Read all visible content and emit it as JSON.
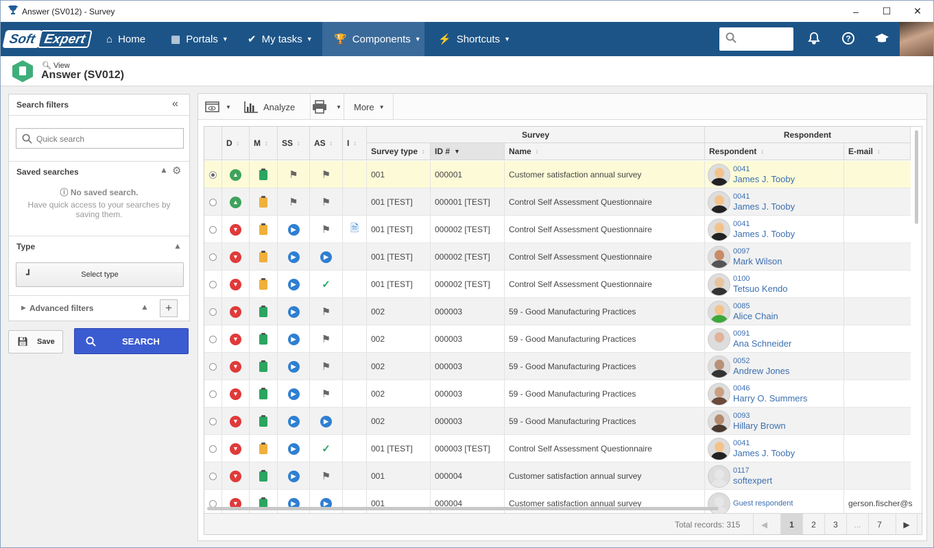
{
  "window": {
    "title": "Answer (SV012) - Survey"
  },
  "logo": {
    "part1": "Soft",
    "part2": "Expert"
  },
  "nav": [
    {
      "label": "Home",
      "icon": "home-icon"
    },
    {
      "label": "Portals",
      "icon": "portals-icon"
    },
    {
      "label": "My tasks",
      "icon": "check-icon"
    },
    {
      "label": "Components",
      "icon": "trophy-icon"
    },
    {
      "label": "Shortcuts",
      "icon": "lightning-icon"
    }
  ],
  "page": {
    "subtitle": "View",
    "title": "Answer (SV012)"
  },
  "filters": {
    "title": "Search filters",
    "quick_search_placeholder": "Quick search",
    "saved_searches": "Saved searches",
    "no_saved": "No saved search.",
    "no_saved_hint": "Have quick access to your searches by saving them.",
    "type": "Type",
    "select_type": "Select type",
    "advanced": "Advanced filters",
    "save": "Save",
    "search": "SEARCH"
  },
  "toolbar": {
    "analyze": "Analyze",
    "more": "More"
  },
  "grid": {
    "group_survey": "Survey",
    "group_respondent": "Respondent",
    "cols": {
      "d": "D",
      "m": "M",
      "ss": "SS",
      "as": "AS",
      "i": "I",
      "survey_type": "Survey type",
      "id": "ID #",
      "name": "Name",
      "respondent": "Respondent",
      "email": "E-mail"
    },
    "rows": [
      {
        "d": "up",
        "m": "g",
        "ss": "flag",
        "as": "flag",
        "i": "",
        "type": "001",
        "id": "000001",
        "name": "Customer satisfaction annual survey",
        "rid": "0041",
        "rname": "James J. Tooby",
        "email": "",
        "sel": true
      },
      {
        "d": "up",
        "m": "o",
        "ss": "flag",
        "as": "flag",
        "i": "",
        "type": "001 [TEST]",
        "id": "000001 [TEST]",
        "name": "Control Self Assessment Questionnaire",
        "rid": "0041",
        "rname": "James J. Tooby",
        "email": ""
      },
      {
        "d": "down",
        "m": "o",
        "ss": "play",
        "as": "flag",
        "i": "doc",
        "type": "001 [TEST]",
        "id": "000002 [TEST]",
        "name": "Control Self Assessment Questionnaire",
        "rid": "0041",
        "rname": "James J. Tooby",
        "email": ""
      },
      {
        "d": "down",
        "m": "o",
        "ss": "play",
        "as": "play",
        "i": "",
        "type": "001 [TEST]",
        "id": "000002 [TEST]",
        "name": "Control Self Assessment Questionnaire",
        "rid": "0097",
        "rname": "Mark Wilson",
        "email": ""
      },
      {
        "d": "down",
        "m": "o",
        "ss": "play",
        "as": "check",
        "i": "",
        "type": "001 [TEST]",
        "id": "000002 [TEST]",
        "name": "Control Self Assessment Questionnaire",
        "rid": "0100",
        "rname": "Tetsuo Kendo",
        "email": ""
      },
      {
        "d": "down",
        "m": "g",
        "ss": "play",
        "as": "flag",
        "i": "",
        "type": "002",
        "id": "000003",
        "name": "59 - Good Manufacturing Practices",
        "rid": "0085",
        "rname": "Alice Chain",
        "email": ""
      },
      {
        "d": "down",
        "m": "g",
        "ss": "play",
        "as": "flag",
        "i": "",
        "type": "002",
        "id": "000003",
        "name": "59 - Good Manufacturing Practices",
        "rid": "0091",
        "rname": "Ana Schneider",
        "email": ""
      },
      {
        "d": "down",
        "m": "g",
        "ss": "play",
        "as": "flag",
        "i": "",
        "type": "002",
        "id": "000003",
        "name": "59 - Good Manufacturing Practices",
        "rid": "0052",
        "rname": "Andrew Jones",
        "email": ""
      },
      {
        "d": "down",
        "m": "g",
        "ss": "play",
        "as": "flag",
        "i": "",
        "type": "002",
        "id": "000003",
        "name": "59 - Good Manufacturing Practices",
        "rid": "0046",
        "rname": "Harry O. Summers",
        "email": ""
      },
      {
        "d": "down",
        "m": "g",
        "ss": "play",
        "as": "play",
        "i": "",
        "type": "002",
        "id": "000003",
        "name": "59 - Good Manufacturing Practices",
        "rid": "0093",
        "rname": "Hillary Brown",
        "email": ""
      },
      {
        "d": "down",
        "m": "o",
        "ss": "play",
        "as": "check",
        "i": "",
        "type": "001 [TEST]",
        "id": "000003 [TEST]",
        "name": "Control Self Assessment Questionnaire",
        "rid": "0041",
        "rname": "James J. Tooby",
        "email": ""
      },
      {
        "d": "down",
        "m": "g",
        "ss": "play",
        "as": "flag",
        "i": "",
        "type": "001",
        "id": "000004",
        "name": "Customer satisfaction annual survey",
        "rid": "0117",
        "rname": "softexpert",
        "email": ""
      },
      {
        "d": "down",
        "m": "g",
        "ss": "play",
        "as": "play",
        "i": "",
        "type": "001",
        "id": "000004",
        "name": "Customer satisfaction annual survey",
        "rid": "Guest respondent",
        "rname": "",
        "email": "gerson.fischer@s"
      }
    ]
  },
  "footer": {
    "total": "Total records: 315",
    "pages": [
      "1",
      "2",
      "3",
      "...",
      "7"
    ],
    "current": "1"
  }
}
